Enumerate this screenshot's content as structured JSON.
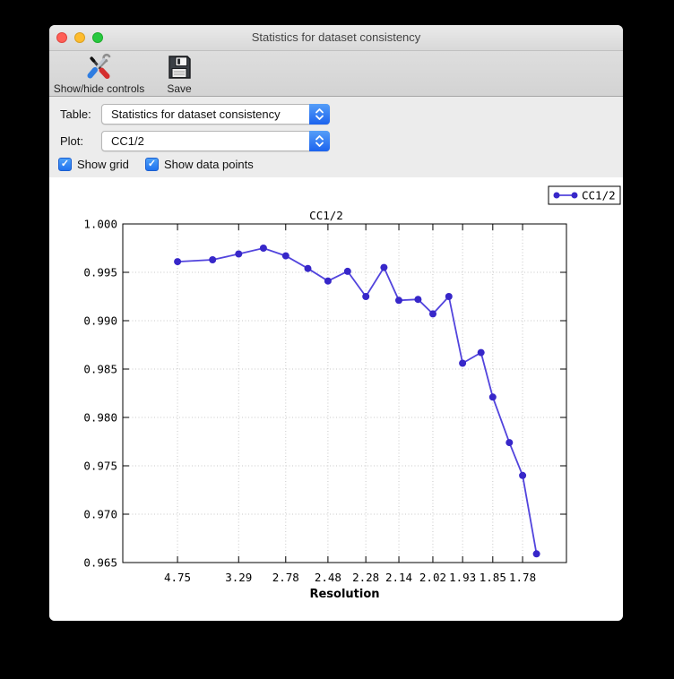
{
  "window": {
    "title": "Statistics for dataset consistency"
  },
  "toolbar": {
    "buttons": [
      {
        "label": "Show/hide controls",
        "icon": "tools-icon"
      },
      {
        "label": "Save",
        "icon": "floppy-disk-icon"
      }
    ]
  },
  "controls": {
    "table": {
      "label": "Table:",
      "value": "Statistics for dataset consistency"
    },
    "plot": {
      "label": "Plot:",
      "value": "CC1/2"
    },
    "checkboxes": [
      {
        "label": "Show grid",
        "checked": true
      },
      {
        "label": "Show data points",
        "checked": true
      }
    ]
  },
  "icons": {
    "checkmark": "✓"
  },
  "colors": {
    "accent_blue": "#2e7cf6",
    "checkbox_blue": "#3b97f7",
    "line": "#5244dd",
    "marker": "#3727c9",
    "grid": "#c8c8c8",
    "traffic_red": "#ff5f57",
    "traffic_yellow": "#febc2e",
    "traffic_green": "#28c840"
  },
  "chart_data": {
    "type": "line",
    "title": "CC1/2",
    "xlabel": "Resolution",
    "ylabel": "",
    "ylim": [
      0.965,
      1.0
    ],
    "grid": true,
    "grid_color": "#c8c8c8",
    "legend": {
      "label": "CC1/2",
      "position": "top-right-outside"
    },
    "x_axis": {
      "scale": "inverse-square-resolution",
      "invsq_range": [
        0.0013,
        0.3501
      ]
    },
    "x_tick_labels": [
      "4.75",
      "3.29",
      "2.78",
      "2.48",
      "2.28",
      "2.14",
      "2.02",
      "1.93",
      "1.85",
      "1.78"
    ],
    "y_tick_labels": [
      "1.000",
      "0.995",
      "0.990",
      "0.985",
      "0.980",
      "0.975",
      "0.970",
      "0.965"
    ],
    "series": [
      {
        "name": "CC1/2",
        "line_color": "#5244dd",
        "marker_color": "#3727c9",
        "points": [
          [
            4.75,
            0.9961
          ],
          [
            3.73,
            0.9963
          ],
          [
            3.29,
            0.9969
          ],
          [
            2.99,
            0.9975
          ],
          [
            2.78,
            0.9967
          ],
          [
            2.61,
            0.9954
          ],
          [
            2.48,
            0.9941
          ],
          [
            2.37,
            0.9951
          ],
          [
            2.28,
            0.9925
          ],
          [
            2.2,
            0.9955
          ],
          [
            2.14,
            0.9921
          ],
          [
            2.07,
            0.9922
          ],
          [
            2.02,
            0.9907
          ],
          [
            1.97,
            0.9925
          ],
          [
            1.93,
            0.9856
          ],
          [
            1.88,
            0.9867
          ],
          [
            1.85,
            0.9821
          ],
          [
            1.81,
            0.9774
          ],
          [
            1.78,
            0.974
          ],
          [
            1.75,
            0.9659
          ]
        ]
      }
    ]
  }
}
